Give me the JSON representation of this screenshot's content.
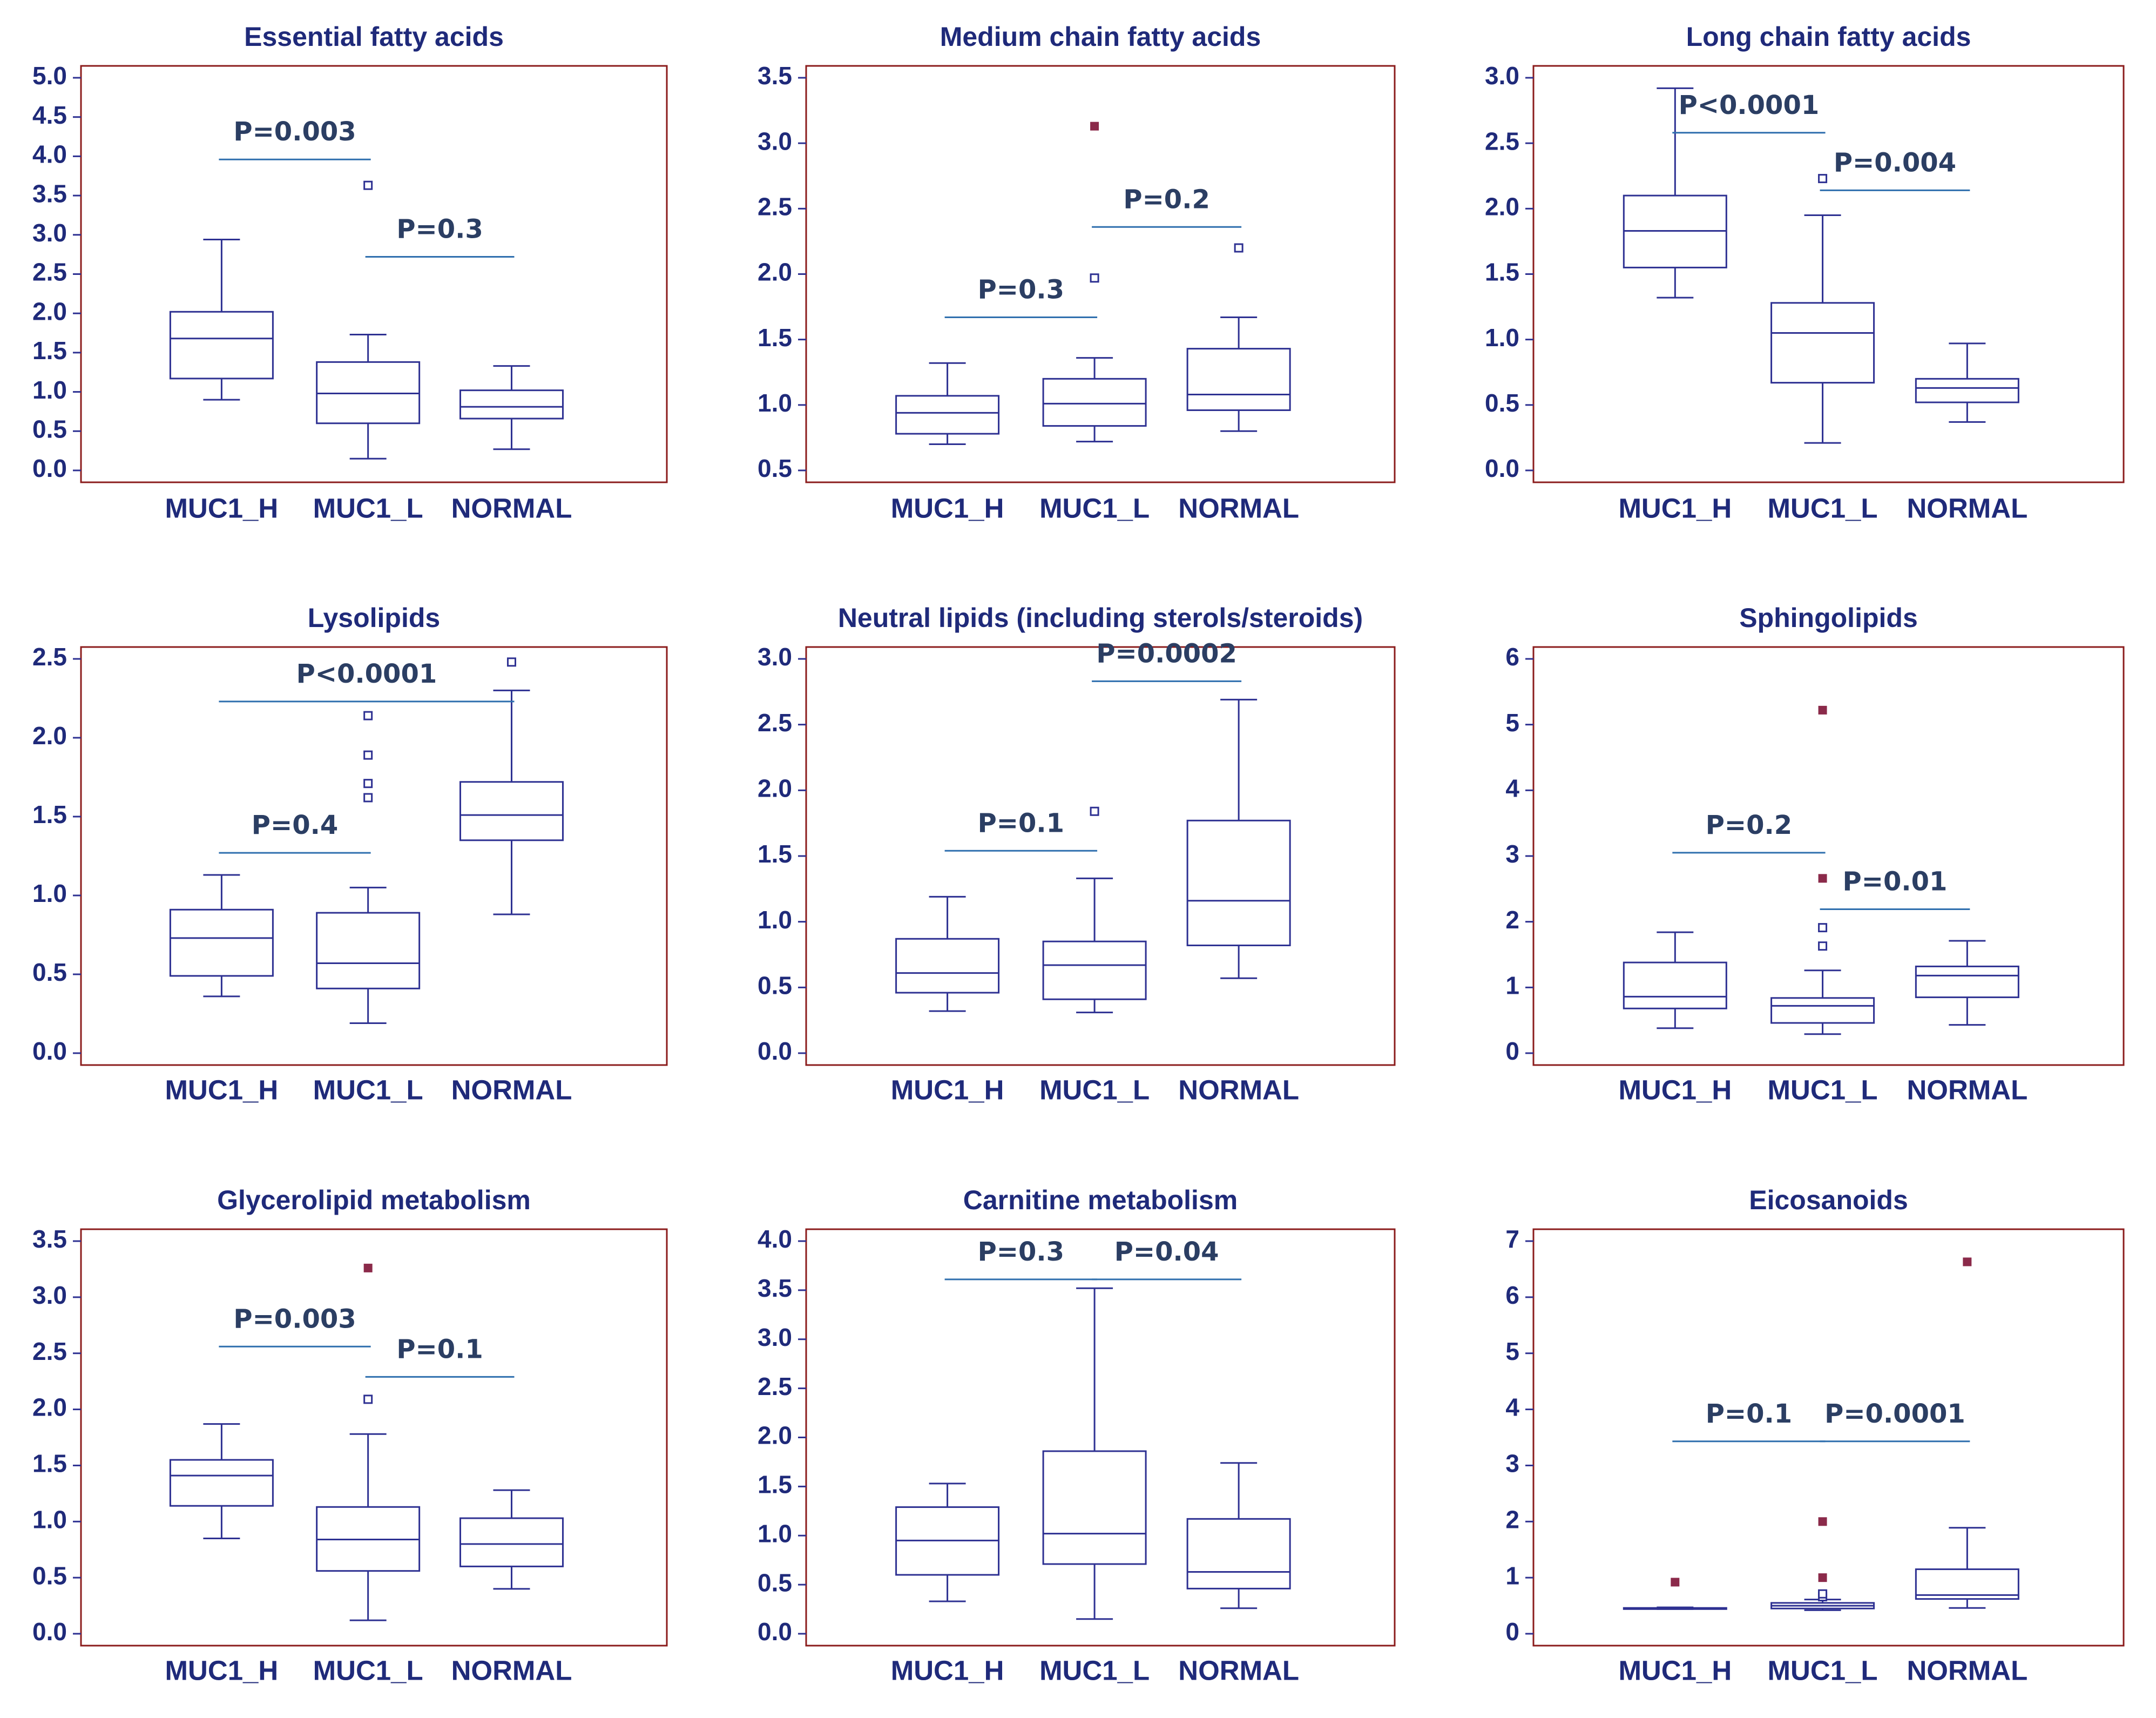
{
  "colors": {
    "frame": "#8b1c1c",
    "box": "#2e3192",
    "text": "#1f2a7a",
    "p_line": "#2f6fae",
    "p_text": "#2b3e63",
    "outlier_far": "#8b2a4a"
  },
  "chart_data": [
    {
      "type": "boxplot",
      "title": "Essential fatty acids",
      "categories": [
        "MUC1_H",
        "MUC1_L",
        "NORMAL"
      ],
      "ylim": [
        0.0,
        5.0
      ],
      "yticks": [
        "0.0",
        "0.5",
        "1.0",
        "1.5",
        "2.0",
        "2.5",
        "3.0",
        "3.5",
        "4.0",
        "4.5",
        "5.0"
      ],
      "boxes": [
        {
          "min": 0.9,
          "q1": 1.17,
          "median": 1.68,
          "q3": 2.02,
          "max": 2.94,
          "outliers": [],
          "far_outliers": []
        },
        {
          "min": 0.15,
          "q1": 0.6,
          "median": 0.98,
          "q3": 1.38,
          "max": 1.73,
          "outliers": [
            3.63
          ],
          "far_outliers": []
        },
        {
          "min": 0.27,
          "q1": 0.66,
          "median": 0.81,
          "q3": 1.02,
          "max": 1.33,
          "outliers": [],
          "far_outliers": []
        }
      ],
      "comparisons": [
        {
          "label": "P=0.003",
          "from": 0,
          "to": 1,
          "y": 3.96
        },
        {
          "label": "P=0.3",
          "from": 1,
          "to": 2,
          "y": 2.72
        }
      ]
    },
    {
      "type": "boxplot",
      "title": "Medium chain fatty acids",
      "categories": [
        "MUC1_H",
        "MUC1_L",
        "NORMAL"
      ],
      "ylim": [
        0.5,
        3.5
      ],
      "yticks": [
        "0.5",
        "1.0",
        "1.5",
        "2.0",
        "2.5",
        "3.0",
        "3.5"
      ],
      "boxes": [
        {
          "min": 0.7,
          "q1": 0.78,
          "median": 0.94,
          "q3": 1.07,
          "max": 1.32,
          "outliers": [],
          "far_outliers": []
        },
        {
          "min": 0.72,
          "q1": 0.84,
          "median": 1.01,
          "q3": 1.2,
          "max": 1.36,
          "outliers": [
            1.97
          ],
          "far_outliers": [
            3.13
          ]
        },
        {
          "min": 0.8,
          "q1": 0.96,
          "median": 1.08,
          "q3": 1.43,
          "max": 1.67,
          "outliers": [
            2.2
          ],
          "far_outliers": []
        }
      ],
      "comparisons": [
        {
          "label": "P=0.3",
          "from": 0,
          "to": 1,
          "y": 1.67
        },
        {
          "label": "P=0.2",
          "from": 1,
          "to": 2,
          "y": 2.36
        }
      ]
    },
    {
      "type": "boxplot",
      "title": "Long chain fatty acids",
      "categories": [
        "MUC1_H",
        "MUC1_L",
        "NORMAL"
      ],
      "ylim": [
        0.0,
        3.0
      ],
      "yticks": [
        "0.0",
        "0.5",
        "1.0",
        "1.5",
        "2.0",
        "2.5",
        "3.0"
      ],
      "boxes": [
        {
          "min": 1.32,
          "q1": 1.55,
          "median": 1.83,
          "q3": 2.1,
          "max": 2.92,
          "outliers": [],
          "far_outliers": []
        },
        {
          "min": 0.21,
          "q1": 0.67,
          "median": 1.05,
          "q3": 1.28,
          "max": 1.95,
          "outliers": [
            2.23
          ],
          "far_outliers": []
        },
        {
          "min": 0.37,
          "q1": 0.52,
          "median": 0.63,
          "q3": 0.7,
          "max": 0.97,
          "outliers": [],
          "far_outliers": []
        }
      ],
      "comparisons": [
        {
          "label": "P<0.0001",
          "from": 0,
          "to": 1,
          "y": 2.58
        },
        {
          "label": "P=0.004",
          "from": 1,
          "to": 2,
          "y": 2.14
        }
      ]
    },
    {
      "type": "boxplot",
      "title": "Lysolipids",
      "categories": [
        "MUC1_H",
        "MUC1_L",
        "NORMAL"
      ],
      "ylim": [
        0.0,
        2.5
      ],
      "yticks": [
        "0.0",
        "0.5",
        "1.0",
        "1.5",
        "2.0",
        "2.5"
      ],
      "boxes": [
        {
          "min": 0.36,
          "q1": 0.49,
          "median": 0.73,
          "q3": 0.91,
          "max": 1.13,
          "outliers": [],
          "far_outliers": []
        },
        {
          "min": 0.19,
          "q1": 0.41,
          "median": 0.57,
          "q3": 0.89,
          "max": 1.05,
          "outliers": [
            1.62,
            1.71,
            1.89,
            2.14
          ],
          "far_outliers": []
        },
        {
          "min": 0.88,
          "q1": 1.35,
          "median": 1.51,
          "q3": 1.72,
          "max": 2.3,
          "outliers": [
            2.48
          ],
          "far_outliers": []
        }
      ],
      "comparisons": [
        {
          "label": "P=0.4",
          "from": 0,
          "to": 1,
          "y": 1.27
        },
        {
          "label": "P<0.0001",
          "from": 0,
          "to": 2,
          "y": 2.23
        }
      ]
    },
    {
      "type": "boxplot",
      "title": "Neutral lipids (including sterols/steroids)",
      "categories": [
        "MUC1_H",
        "MUC1_L",
        "NORMAL"
      ],
      "ylim": [
        0.0,
        3.0
      ],
      "yticks": [
        "0.0",
        "0.5",
        "1.0",
        "1.5",
        "2.0",
        "2.5",
        "3.0"
      ],
      "boxes": [
        {
          "min": 0.32,
          "q1": 0.46,
          "median": 0.61,
          "q3": 0.87,
          "max": 1.19,
          "outliers": [],
          "far_outliers": []
        },
        {
          "min": 0.31,
          "q1": 0.41,
          "median": 0.67,
          "q3": 0.85,
          "max": 1.33,
          "outliers": [
            1.84
          ],
          "far_outliers": []
        },
        {
          "min": 0.57,
          "q1": 0.82,
          "median": 1.16,
          "q3": 1.77,
          "max": 2.69,
          "outliers": [],
          "far_outliers": []
        }
      ],
      "comparisons": [
        {
          "label": "P=0.1",
          "from": 0,
          "to": 1,
          "y": 1.54
        },
        {
          "label": "P=0.0002",
          "from": 1,
          "to": 2,
          "y": 2.83
        }
      ]
    },
    {
      "type": "boxplot",
      "title": "Sphingolipids",
      "categories": [
        "MUC1_H",
        "MUC1_L",
        "NORMAL"
      ],
      "ylim": [
        0,
        6
      ],
      "yticks": [
        "0",
        "1",
        "2",
        "3",
        "4",
        "5",
        "6"
      ],
      "boxes": [
        {
          "min": 0.38,
          "q1": 0.68,
          "median": 0.86,
          "q3": 1.38,
          "max": 1.84,
          "outliers": [],
          "far_outliers": []
        },
        {
          "min": 0.29,
          "q1": 0.46,
          "median": 0.72,
          "q3": 0.84,
          "max": 1.26,
          "outliers": [
            1.63,
            1.91
          ],
          "far_outliers": [
            2.66,
            5.22
          ]
        },
        {
          "min": 0.43,
          "q1": 0.85,
          "median": 1.18,
          "q3": 1.32,
          "max": 1.71,
          "outliers": [],
          "far_outliers": []
        }
      ],
      "comparisons": [
        {
          "label": "P=0.2",
          "from": 0,
          "to": 1,
          "y": 3.05
        },
        {
          "label": "P=0.01",
          "from": 1,
          "to": 2,
          "y": 2.19
        }
      ]
    },
    {
      "type": "boxplot",
      "title": "Glycerolipid metabolism",
      "categories": [
        "MUC1_H",
        "MUC1_L",
        "NORMAL"
      ],
      "ylim": [
        0.0,
        3.5
      ],
      "yticks": [
        "0.0",
        "0.5",
        "1.0",
        "1.5",
        "2.0",
        "2.5",
        "3.0",
        "3.5"
      ],
      "boxes": [
        {
          "min": 0.85,
          "q1": 1.14,
          "median": 1.41,
          "q3": 1.55,
          "max": 1.87,
          "outliers": [],
          "far_outliers": []
        },
        {
          "min": 0.12,
          "q1": 0.56,
          "median": 0.84,
          "q3": 1.13,
          "max": 1.78,
          "outliers": [
            2.09
          ],
          "far_outliers": [
            3.26
          ]
        },
        {
          "min": 0.4,
          "q1": 0.6,
          "median": 0.8,
          "q3": 1.03,
          "max": 1.28,
          "outliers": [],
          "far_outliers": []
        }
      ],
      "comparisons": [
        {
          "label": "P=0.003",
          "from": 0,
          "to": 1,
          "y": 2.56
        },
        {
          "label": "P=0.1",
          "from": 1,
          "to": 2,
          "y": 2.29
        }
      ]
    },
    {
      "type": "boxplot",
      "title": "Carnitine metabolism",
      "categories": [
        "MUC1_H",
        "MUC1_L",
        "NORMAL"
      ],
      "ylim": [
        0.0,
        4.0
      ],
      "yticks": [
        "0.0",
        "0.5",
        "1.0",
        "1.5",
        "2.0",
        "2.5",
        "3.0",
        "3.5",
        "4.0"
      ],
      "boxes": [
        {
          "min": 0.33,
          "q1": 0.6,
          "median": 0.95,
          "q3": 1.29,
          "max": 1.53,
          "outliers": [],
          "far_outliers": []
        },
        {
          "min": 0.15,
          "q1": 0.71,
          "median": 1.02,
          "q3": 1.86,
          "max": 3.52,
          "outliers": [],
          "far_outliers": []
        },
        {
          "min": 0.26,
          "q1": 0.46,
          "median": 0.63,
          "q3": 1.17,
          "max": 1.74,
          "outliers": [],
          "far_outliers": []
        }
      ],
      "comparisons": [
        {
          "label": "P=0.3",
          "from": 0,
          "to": 1,
          "y": 3.61
        },
        {
          "label": "P=0.04",
          "from": 1,
          "to": 2,
          "y": 3.61
        }
      ]
    },
    {
      "type": "boxplot",
      "title": "Eicosanoids",
      "categories": [
        "MUC1_H",
        "MUC1_L",
        "NORMAL"
      ],
      "ylim": [
        0,
        7
      ],
      "yticks": [
        "0",
        "1",
        "2",
        "3",
        "4",
        "5",
        "6",
        "7"
      ],
      "boxes": [
        {
          "min": 0.44,
          "q1": 0.44,
          "median": 0.45,
          "q3": 0.46,
          "max": 0.47,
          "outliers": [],
          "far_outliers": [
            0.92
          ]
        },
        {
          "min": 0.42,
          "q1": 0.45,
          "median": 0.5,
          "q3": 0.55,
          "max": 0.61,
          "outliers": [
            0.66,
            0.71
          ],
          "far_outliers": [
            1.0,
            2.0
          ]
        },
        {
          "min": 0.46,
          "q1": 0.62,
          "median": 0.69,
          "q3": 1.15,
          "max": 1.89,
          "outliers": [],
          "far_outliers": [
            6.63
          ]
        }
      ],
      "comparisons": [
        {
          "label": "P=0.1",
          "from": 0,
          "to": 1,
          "y": 3.43
        },
        {
          "label": "P=0.0001",
          "from": 1,
          "to": 2,
          "y": 3.43
        }
      ]
    }
  ]
}
